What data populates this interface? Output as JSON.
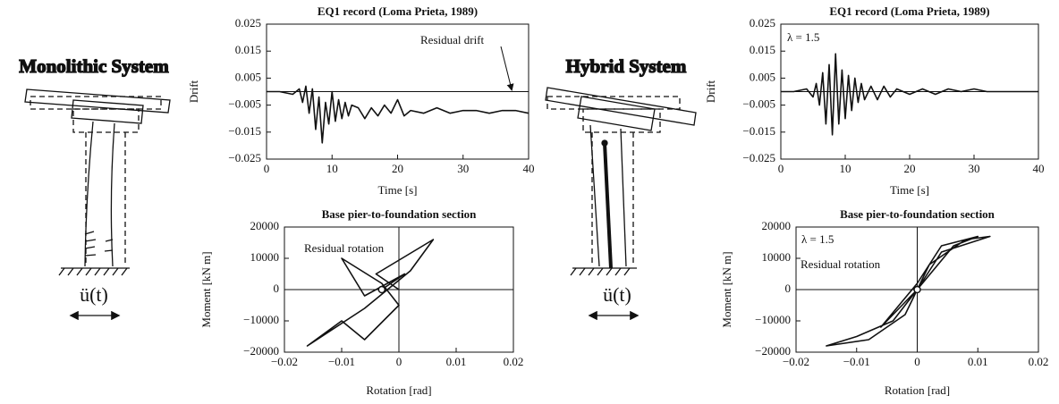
{
  "diagrams": [
    {
      "title": "Monolithic System",
      "input": "ü(t)"
    },
    {
      "title": "Hybrid System",
      "input": "ü(t)"
    }
  ],
  "chart_data": [
    {
      "type": "line",
      "title": "EQ1 record (Loma Prieta, 1989)",
      "xlabel": "Time [s]",
      "ylabel": "Drift",
      "annotations": [
        "Residual drift"
      ],
      "color": "#111111",
      "x": [
        0,
        2,
        4,
        5,
        5.5,
        6,
        6.5,
        7,
        7.5,
        8,
        8.5,
        9,
        9.5,
        10,
        10.5,
        11,
        11.5,
        12,
        12.5,
        13,
        14,
        15,
        16,
        17,
        18,
        19,
        20,
        21,
        22,
        24,
        26,
        28,
        30,
        32,
        34,
        36,
        38,
        40
      ],
      "values": [
        0,
        0,
        -0.001,
        0.001,
        -0.004,
        0.002,
        -0.008,
        0.001,
        -0.014,
        -0.002,
        -0.019,
        -0.004,
        -0.012,
        0.0,
        -0.011,
        -0.003,
        -0.01,
        -0.004,
        -0.009,
        -0.005,
        -0.006,
        -0.01,
        -0.006,
        -0.009,
        -0.005,
        -0.008,
        -0.003,
        -0.009,
        -0.007,
        -0.008,
        -0.006,
        -0.008,
        -0.007,
        -0.007,
        -0.008,
        -0.007,
        -0.007,
        -0.008
      ],
      "xlim": [
        0,
        40
      ],
      "xticks": [
        0,
        10,
        20,
        30,
        40
      ],
      "ylim": [
        -0.025,
        0.025
      ],
      "yticks": [
        0.025,
        0.015,
        0.005,
        {
          "value": -0.005,
          "label": "−0.005"
        },
        {
          "value": -0.015,
          "label": "−0.015"
        },
        {
          "value": -0.025,
          "label": "−0.025"
        }
      ]
    },
    {
      "type": "line",
      "title": "EQ1 record (Loma Prieta, 1989)",
      "xlabel": "Time [s]",
      "ylabel": "Drift",
      "annotations": [
        "λ = 1.5"
      ],
      "color": "#111111",
      "x": [
        0,
        2,
        4,
        5,
        5.5,
        6,
        6.5,
        7,
        7.5,
        8,
        8.5,
        9,
        9.5,
        10,
        10.5,
        11,
        11.5,
        12,
        12.5,
        13,
        14,
        15,
        16,
        17,
        18,
        20,
        22,
        24,
        26,
        28,
        30,
        32,
        34,
        36,
        38,
        40
      ],
      "values": [
        0,
        0,
        0.001,
        -0.002,
        0.003,
        -0.005,
        0.007,
        -0.012,
        0.01,
        -0.016,
        0.014,
        -0.012,
        0.008,
        -0.01,
        0.006,
        -0.007,
        0.005,
        -0.004,
        0.003,
        -0.003,
        0.002,
        -0.003,
        0.002,
        -0.002,
        0.001,
        -0.001,
        0.001,
        -0.001,
        0.001,
        0,
        0.001,
        0,
        0,
        0,
        0,
        0
      ],
      "xlim": [
        0,
        40
      ],
      "xticks": [
        0,
        10,
        20,
        30,
        40
      ],
      "ylim": [
        -0.025,
        0.025
      ],
      "yticks": [
        0.025,
        0.015,
        0.005,
        {
          "value": -0.005,
          "label": "−0.005"
        },
        {
          "value": -0.015,
          "label": "−0.015"
        },
        {
          "value": -0.025,
          "label": "−0.025"
        }
      ]
    },
    {
      "type": "line",
      "title": "Base pier-to-foundation section",
      "xlabel": "Rotation [rad]",
      "ylabel": "Moment [kN m]",
      "annotations": [
        "Residual rotation"
      ],
      "color": "#111111",
      "x": [
        0,
        -0.004,
        0.006,
        0.002,
        -0.006,
        -0.016,
        -0.01,
        -0.006,
        0.0,
        -0.003,
        -0.01,
        -0.006,
        -0.003,
        0.001,
        -0.003
      ],
      "values": [
        0,
        5000,
        16000,
        6000,
        -6000,
        -18000,
        -10000,
        -16000,
        -5000,
        2000,
        10000,
        -2000,
        1000,
        5000,
        0
      ],
      "xlim": [
        -0.02,
        0.02
      ],
      "xticks": [
        {
          "value": -0.02,
          "label": "−0.02"
        },
        {
          "value": -0.01,
          "label": "−0.01"
        },
        0,
        0.01,
        0.02
      ],
      "ylim": [
        -20000,
        20000
      ],
      "yticks": [
        20000,
        10000,
        0,
        {
          "value": -10000,
          "label": "−10000"
        },
        {
          "value": -20000,
          "label": "−20000"
        }
      ]
    },
    {
      "type": "line",
      "title": "Base pier-to-foundation section",
      "xlabel": "Rotation [rad]",
      "ylabel": "Moment [kN m]",
      "annotations": [
        "λ = 1.5",
        "Residual rotation"
      ],
      "color": "#111111",
      "x": [
        0,
        0.004,
        0.012,
        0.008,
        0.002,
        0,
        -0.002,
        -0.008,
        -0.015,
        -0.01,
        -0.004,
        0,
        0.006,
        0.01,
        0.004,
        0,
        -0.006,
        -0.002,
        0
      ],
      "values": [
        0,
        12000,
        17000,
        16000,
        8000,
        0,
        -8000,
        -16000,
        -18000,
        -15000,
        -10000,
        0,
        14000,
        17000,
        14000,
        2000,
        -12000,
        -4000,
        0
      ],
      "xlim": [
        -0.02,
        0.02
      ],
      "xticks": [
        {
          "value": -0.02,
          "label": "−0.02"
        },
        {
          "value": -0.01,
          "label": "−0.01"
        },
        0,
        0.01,
        0.02
      ],
      "ylim": [
        -20000,
        20000
      ],
      "yticks": [
        20000,
        10000,
        0,
        {
          "value": -10000,
          "label": "−10000"
        },
        {
          "value": -20000,
          "label": "−20000"
        }
      ]
    }
  ]
}
